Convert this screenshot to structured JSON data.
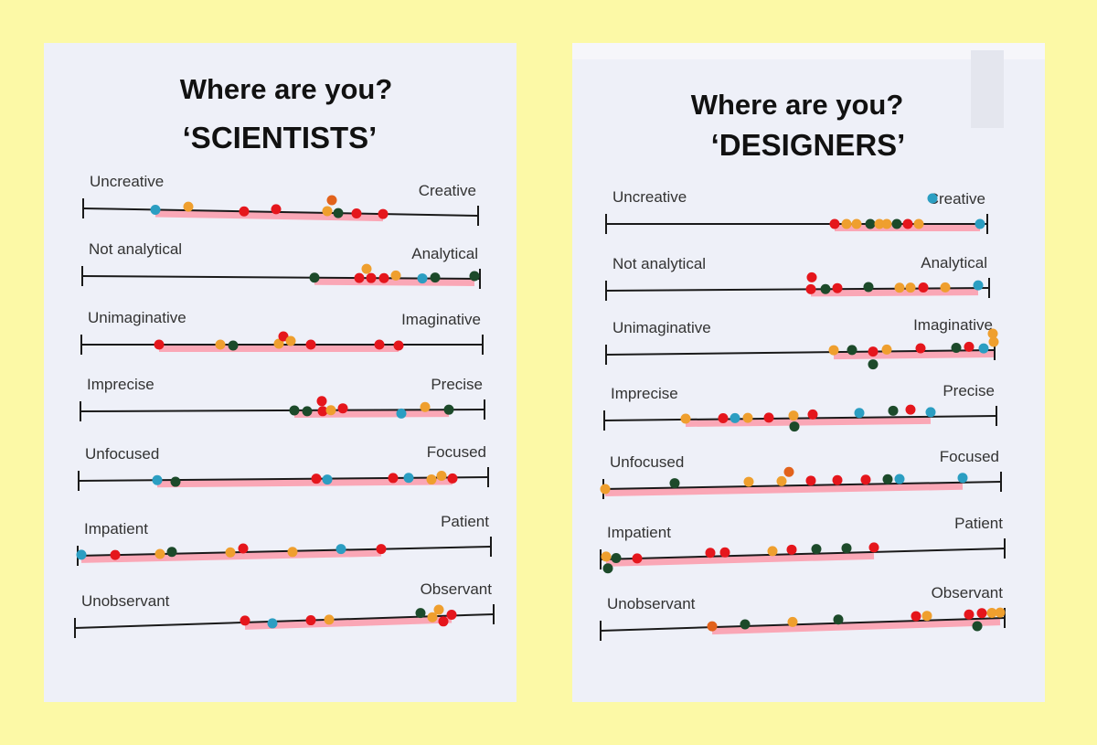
{
  "sheets": [
    {
      "title": "Where are you?",
      "subtitle": "‘SCIENTISTS’",
      "scales": [
        {
          "left": "Uncreative",
          "right": "Creative"
        },
        {
          "left": "Not analytical",
          "right": "Analytical"
        },
        {
          "left": "Unimaginative",
          "right": "Imaginative"
        },
        {
          "left": "Imprecise",
          "right": "Precise"
        },
        {
          "left": "Unfocused",
          "right": "Focused"
        },
        {
          "left": "Impatient",
          "right": "Patient"
        },
        {
          "left": "Unobservant",
          "right": "Observant"
        }
      ]
    },
    {
      "title": "Where are you?",
      "subtitle": "‘DESIGNERS’",
      "scales": [
        {
          "left": "Uncreative",
          "right": "Creative"
        },
        {
          "left": "Not analytical",
          "right": "Analytical"
        },
        {
          "left": "Unimaginative",
          "right": "Imaginative"
        },
        {
          "left": "Imprecise",
          "right": "Precise"
        },
        {
          "left": "Unfocused",
          "right": "Focused"
        },
        {
          "left": "Impatient",
          "right": "Patient"
        },
        {
          "left": "Unobservant",
          "right": "Observant"
        }
      ]
    }
  ]
}
